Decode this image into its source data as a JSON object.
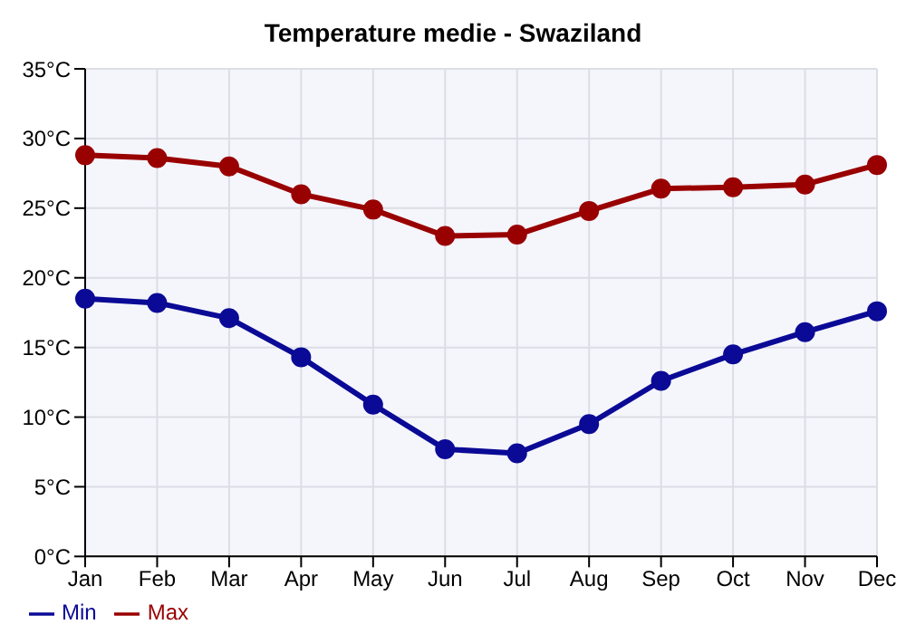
{
  "chart_data": {
    "type": "line",
    "title": "Temperature medie - Swaziland",
    "categories": [
      "Jan",
      "Feb",
      "Mar",
      "Apr",
      "May",
      "Jun",
      "Jul",
      "Aug",
      "Sep",
      "Oct",
      "Nov",
      "Dec"
    ],
    "series": [
      {
        "name": "Min",
        "color": "#0a0a96",
        "values": [
          18.5,
          18.2,
          17.1,
          14.3,
          10.9,
          7.7,
          7.4,
          9.5,
          12.6,
          14.5,
          16.1,
          17.6
        ]
      },
      {
        "name": "Max",
        "color": "#990000",
        "values": [
          28.8,
          28.6,
          28.0,
          26.0,
          24.9,
          23.0,
          23.1,
          24.8,
          26.4,
          26.5,
          26.7,
          28.1
        ]
      }
    ],
    "ylim": [
      0,
      35
    ],
    "yticks": [
      {
        "value": 0,
        "label": "0°C"
      },
      {
        "value": 5,
        "label": "5°C"
      },
      {
        "value": 10,
        "label": "10°C"
      },
      {
        "value": 15,
        "label": "15°C"
      },
      {
        "value": 20,
        "label": "20°C"
      },
      {
        "value": 25,
        "label": "25°C"
      },
      {
        "value": 30,
        "label": "30°C"
      },
      {
        "value": 35,
        "label": "35°C"
      }
    ],
    "grid": true,
    "legend": "bottom left",
    "marker": "circle",
    "line_style": "solid"
  }
}
